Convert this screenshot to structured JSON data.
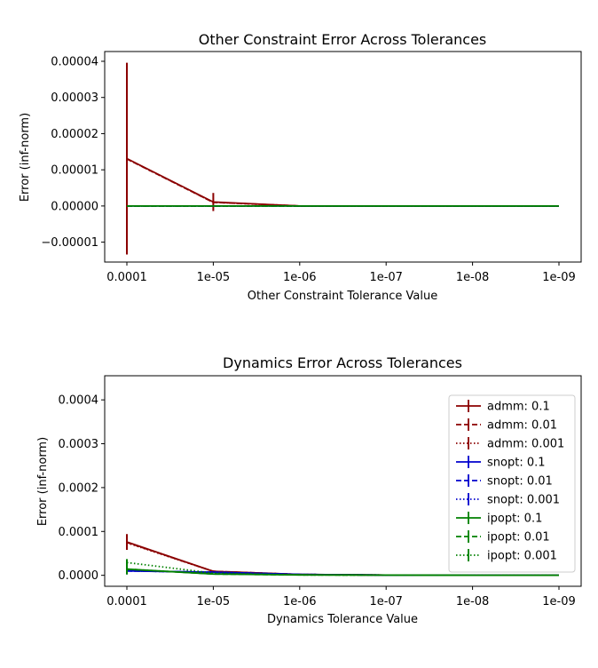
{
  "chart_data": [
    {
      "type": "line",
      "title": "Other Constraint Error Across Tolerances",
      "xlabel": "Other Constraint Tolerance Value",
      "ylabel": "Error (inf-norm)",
      "x_categories": [
        "0.0001",
        "1e-05",
        "1e-06",
        "1e-07",
        "1e-08",
        "1e-09"
      ],
      "ylim": [
        -1.55e-05,
        4.27e-05
      ],
      "yticks": [
        -1e-05,
        0.0,
        1e-05,
        2e-05,
        3e-05,
        4e-05
      ],
      "ytick_labels": [
        "−0.00001",
        "0.00000",
        "0.00001",
        "0.00002",
        "0.00003",
        "0.00004"
      ],
      "grid": false,
      "series": [
        {
          "name": "admm: 0.1",
          "color": "#8b0000",
          "style": "solid",
          "values": [
            1.31e-05,
            1.1e-06,
            0.0,
            0.0,
            0.0,
            0.0
          ],
          "errors": [
            2.65e-05,
            2.5e-06,
            0.0,
            0.0,
            0.0,
            0.0
          ]
        },
        {
          "name": "admm: 0.01",
          "color": "#8b0000",
          "style": "dashed",
          "values": [
            1.3e-05,
            1e-06,
            0.0,
            0.0,
            0.0,
            0.0
          ],
          "errors": [
            0.0,
            0.0,
            0.0,
            0.0,
            0.0,
            0.0
          ]
        },
        {
          "name": "admm: 0.001",
          "color": "#8b0000",
          "style": "dotted",
          "values": [
            1.3e-05,
            1e-06,
            0.0,
            0.0,
            0.0,
            0.0
          ],
          "errors": [
            0.0,
            0.0,
            0.0,
            0.0,
            0.0,
            0.0
          ]
        },
        {
          "name": "snopt: 0.1",
          "color": "#0000cd",
          "style": "solid",
          "values": [
            0.0,
            0.0,
            0.0,
            0.0,
            0.0,
            0.0
          ],
          "errors": [
            0.0,
            0.0,
            0.0,
            0.0,
            0.0,
            0.0
          ]
        },
        {
          "name": "snopt: 0.01",
          "color": "#0000cd",
          "style": "dashed",
          "values": [
            0.0,
            0.0,
            0.0,
            0.0,
            0.0,
            0.0
          ],
          "errors": [
            0.0,
            0.0,
            0.0,
            0.0,
            0.0,
            0.0
          ]
        },
        {
          "name": "snopt: 0.001",
          "color": "#0000cd",
          "style": "dotted",
          "values": [
            0.0,
            0.0,
            0.0,
            0.0,
            0.0,
            0.0
          ],
          "errors": [
            0.0,
            0.0,
            0.0,
            0.0,
            0.0,
            0.0
          ]
        },
        {
          "name": "ipopt: 0.1",
          "color": "#008000",
          "style": "solid",
          "values": [
            0.0,
            0.0,
            0.0,
            0.0,
            0.0,
            0.0
          ],
          "errors": [
            0.0,
            0.0,
            0.0,
            0.0,
            0.0,
            0.0
          ]
        },
        {
          "name": "ipopt: 0.01",
          "color": "#008000",
          "style": "dashed",
          "values": [
            0.0,
            0.0,
            0.0,
            0.0,
            0.0,
            0.0
          ],
          "errors": [
            0.0,
            0.0,
            0.0,
            0.0,
            0.0,
            0.0
          ]
        },
        {
          "name": "ipopt: 0.001",
          "color": "#008000",
          "style": "dotted",
          "values": [
            0.0,
            0.0,
            0.0,
            0.0,
            0.0,
            0.0
          ],
          "errors": [
            0.0,
            0.0,
            0.0,
            0.0,
            0.0,
            0.0
          ]
        }
      ]
    },
    {
      "type": "line",
      "title": "Dynamics Error Across Tolerances",
      "xlabel": "Dynamics Tolerance Value",
      "ylabel": "Error (inf-norm)",
      "x_categories": [
        "0.0001",
        "1e-05",
        "1e-06",
        "1e-07",
        "1e-08",
        "1e-09"
      ],
      "ylim": [
        -2.5e-05,
        0.000455
      ],
      "yticks": [
        0.0,
        0.0001,
        0.0002,
        0.0003,
        0.0004
      ],
      "ytick_labels": [
        "0.0000",
        "0.0001",
        "0.0002",
        "0.0003",
        "0.0004"
      ],
      "grid": false,
      "legend": "right",
      "series": [
        {
          "name": "admm: 0.1",
          "color": "#8b0000",
          "style": "solid",
          "values": [
            7.6e-05,
            9e-06,
            2e-06,
            5e-07,
            2e-07,
            1e-07
          ],
          "errors": [
            1.8e-05,
            2e-06,
            0.0,
            0.0,
            0.0,
            0.0
          ]
        },
        {
          "name": "admm: 0.01",
          "color": "#8b0000",
          "style": "dashed",
          "values": [
            7.5e-05,
            9e-06,
            2e-06,
            5e-07,
            2e-07,
            1e-07
          ],
          "errors": [
            0.0,
            0.0,
            0.0,
            0.0,
            0.0,
            0.0
          ]
        },
        {
          "name": "admm: 0.001",
          "color": "#8b0000",
          "style": "dotted",
          "values": [
            7.4e-05,
            9e-06,
            2e-06,
            5e-07,
            2e-07,
            1e-07
          ],
          "errors": [
            0.0,
            0.0,
            0.0,
            0.0,
            0.0,
            0.0
          ]
        },
        {
          "name": "snopt: 0.1",
          "color": "#0000cd",
          "style": "solid",
          "values": [
            1e-05,
            7e-06,
            2e-06,
            5e-07,
            2e-07,
            1e-07
          ],
          "errors": [
            8e-06,
            0.0,
            0.0,
            0.0,
            0.0,
            0.0
          ]
        },
        {
          "name": "snopt: 0.01",
          "color": "#0000cd",
          "style": "dashed",
          "values": [
            1e-05,
            7e-06,
            2e-06,
            5e-07,
            2e-07,
            1e-07
          ],
          "errors": [
            0.0,
            0.0,
            0.0,
            0.0,
            0.0,
            0.0
          ]
        },
        {
          "name": "snopt: 0.001",
          "color": "#0000cd",
          "style": "dotted",
          "values": [
            1e-05,
            7e-06,
            2e-06,
            5e-07,
            2e-07,
            1e-07
          ],
          "errors": [
            0.0,
            0.0,
            0.0,
            0.0,
            0.0,
            0.0
          ]
        },
        {
          "name": "ipopt: 0.1",
          "color": "#008000",
          "style": "solid",
          "values": [
            1.4e-05,
            3e-06,
            1e-06,
            5e-07,
            2e-07,
            1e-07
          ],
          "errors": [
            1.2e-05,
            0.0,
            0.0,
            0.0,
            0.0,
            0.0
          ]
        },
        {
          "name": "ipopt: 0.01",
          "color": "#008000",
          "style": "dashed",
          "values": [
            1.4e-05,
            3e-06,
            1e-06,
            5e-07,
            2e-07,
            1e-07
          ],
          "errors": [
            0.0,
            0.0,
            0.0,
            0.0,
            0.0,
            0.0
          ]
        },
        {
          "name": "ipopt: 0.001",
          "color": "#008000",
          "style": "dotted",
          "values": [
            2.9e-05,
            5e-06,
            1e-06,
            5e-07,
            2e-07,
            1e-07
          ],
          "errors": [
            8e-06,
            0.0,
            0.0,
            0.0,
            0.0,
            0.0
          ]
        }
      ]
    }
  ]
}
